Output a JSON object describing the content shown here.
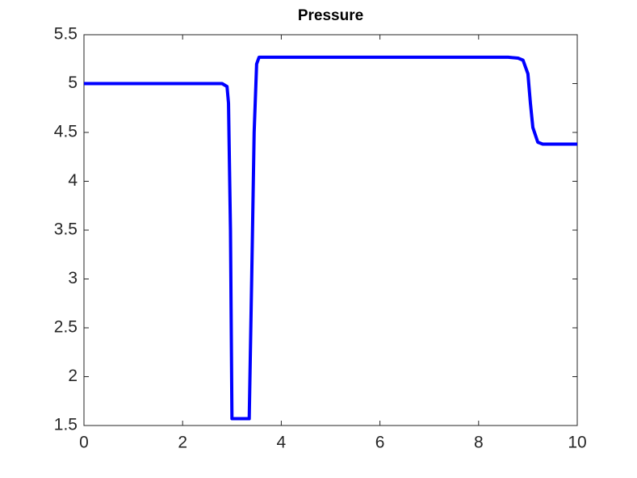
{
  "chart_data": {
    "type": "line",
    "title": "Pressure",
    "x": [
      0,
      2.8,
      2.9,
      2.93,
      2.97,
      3.0,
      3.35,
      3.4,
      3.45,
      3.5,
      3.55,
      8.6,
      8.8,
      8.9,
      9.0,
      9.05,
      9.1,
      9.2,
      9.3,
      10
    ],
    "series": [
      {
        "color": "#0000ff",
        "values": [
          5,
          5,
          4.97,
          4.8,
          3.5,
          1.57,
          1.57,
          3.0,
          4.5,
          5.2,
          5.27,
          5.27,
          5.26,
          5.24,
          5.1,
          4.8,
          4.55,
          4.4,
          4.38,
          4.38
        ]
      }
    ],
    "xlim": [
      0,
      10
    ],
    "xticks": [
      0,
      2,
      4,
      6,
      8,
      10
    ],
    "ylim": [
      1.5,
      5.5
    ],
    "yticks": [
      1.5,
      2,
      2.5,
      3,
      3.5,
      4,
      4.5,
      5,
      5.5
    ]
  }
}
